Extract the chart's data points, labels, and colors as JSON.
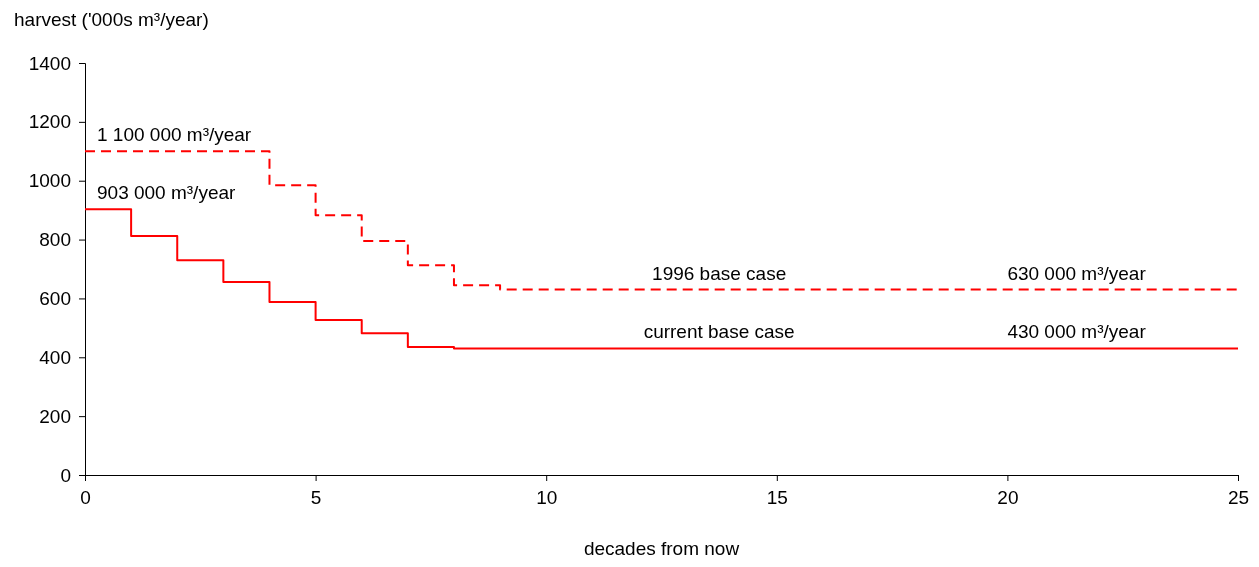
{
  "chart_data": {
    "type": "step",
    "xlabel": "decades from now",
    "ylabel": "harvest ('000s m³/year)",
    "xlim": [
      0,
      25
    ],
    "xticks": [
      0,
      5,
      10,
      15,
      20,
      25
    ],
    "ylim": [
      0,
      1400
    ],
    "yticks": [
      0,
      200,
      400,
      600,
      800,
      1000,
      1200,
      1400
    ],
    "grid": false,
    "series": [
      {
        "name": "1996 base case",
        "color": "#ff0000",
        "line_style": "dashed",
        "x": [
          0,
          4,
          5,
          6,
          7,
          8,
          9,
          25
        ],
        "values": [
          1100,
          985,
          883,
          795,
          713,
          645,
          630,
          630
        ]
      },
      {
        "name": "current base case",
        "color": "#ff0000",
        "line_style": "solid",
        "x": [
          0,
          1,
          2,
          3,
          4,
          5,
          6,
          7,
          8,
          25
        ],
        "values": [
          903,
          812,
          730,
          656,
          588,
          527,
          482,
          435,
          430,
          430
        ]
      }
    ],
    "annotations": [
      "1 100 000 m³/year",
      "903 000 m³/year",
      "630 000 m³/year",
      "430 000 m³/year"
    ]
  }
}
